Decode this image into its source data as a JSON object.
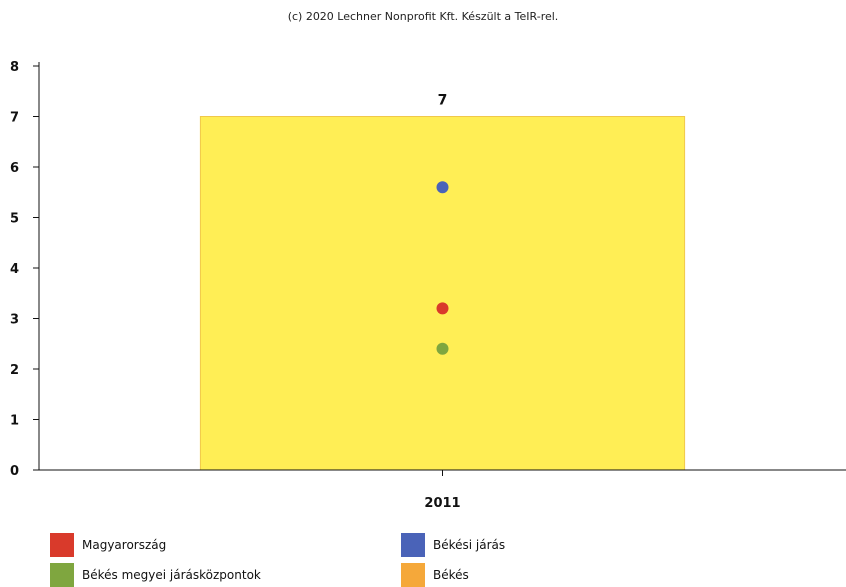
{
  "credit": "(c) 2020 Lechner Nonprofit Kft. Készült a TeIR-rel.",
  "chart_data": {
    "type": "bar",
    "categories": [
      "2011"
    ],
    "ylim": [
      0,
      8
    ],
    "yticks": [
      0,
      1,
      2,
      3,
      4,
      5,
      6,
      7,
      8
    ],
    "grid": false,
    "legend_position": "bottom",
    "bar_series": {
      "name": "Békés",
      "values": [
        7
      ],
      "color": "#ffee55",
      "legend_color": "#f5a83a",
      "data_labels": [
        "7"
      ]
    },
    "point_series": [
      {
        "name": "Magyarország",
        "values": [
          3.2
        ],
        "color": "#d93a2b"
      },
      {
        "name": "Békési járás",
        "values": [
          5.6
        ],
        "color": "#4a63b8"
      },
      {
        "name": "Békés megyei járásközpontok",
        "values": [
          2.4
        ],
        "color": "#7fa63f"
      }
    ]
  },
  "legend": [
    {
      "label": "Magyarország",
      "color": "#d93a2b"
    },
    {
      "label": "Békési járás",
      "color": "#4a63b8"
    },
    {
      "label": "Békés megyei járásközpontok",
      "color": "#7fa63f"
    },
    {
      "label": "Békés",
      "color": "#f5a83a"
    }
  ]
}
